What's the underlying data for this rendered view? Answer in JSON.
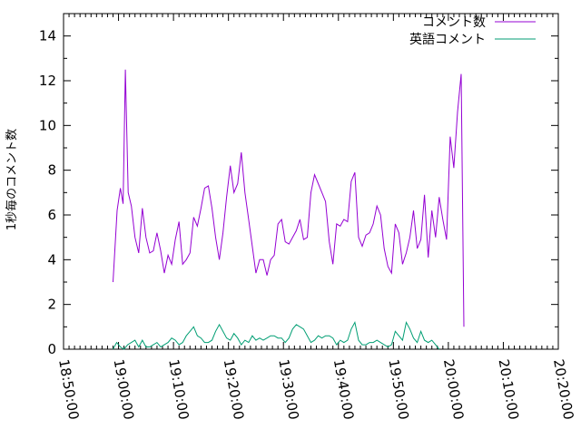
{
  "chart_data": {
    "type": "line",
    "title": "",
    "xlabel": "",
    "ylabel": "1秒毎のコメント数",
    "ylim": [
      0,
      15
    ],
    "yticks": [
      0,
      2,
      4,
      6,
      8,
      10,
      12,
      14
    ],
    "xlim": [
      "18:50:00",
      "20:20:00"
    ],
    "xticks": [
      "18:50:00",
      "19:00:00",
      "19:10:00",
      "19:20:00",
      "19:30:00",
      "19:40:00",
      "19:50:00",
      "20:00:00",
      "20:10:00",
      "20:20:00"
    ],
    "grid": false,
    "legend_position": "top-right",
    "series": [
      {
        "name": "コメント数",
        "color": "#9400d3",
        "points": [
          [
            "18:59:00",
            3.0
          ],
          [
            "18:59:45",
            6.2
          ],
          [
            "19:00:20",
            7.2
          ],
          [
            "19:00:50",
            6.5
          ],
          [
            "19:01:15",
            12.5
          ],
          [
            "19:01:45",
            7.0
          ],
          [
            "19:02:20",
            6.4
          ],
          [
            "19:03:00",
            5.0
          ],
          [
            "19:03:40",
            4.3
          ],
          [
            "19:04:20",
            6.3
          ],
          [
            "19:05:00",
            5.0
          ],
          [
            "19:05:40",
            4.3
          ],
          [
            "19:06:20",
            4.4
          ],
          [
            "19:07:00",
            5.2
          ],
          [
            "19:07:40",
            4.4
          ],
          [
            "19:08:20",
            3.4
          ],
          [
            "19:09:00",
            4.2
          ],
          [
            "19:09:40",
            3.8
          ],
          [
            "19:10:20",
            4.9
          ],
          [
            "19:11:00",
            5.7
          ],
          [
            "19:11:40",
            3.8
          ],
          [
            "19:12:20",
            4.0
          ],
          [
            "19:13:00",
            4.3
          ],
          [
            "19:13:40",
            5.9
          ],
          [
            "19:14:20",
            5.5
          ],
          [
            "19:15:00",
            6.3
          ],
          [
            "19:15:40",
            7.2
          ],
          [
            "19:16:20",
            7.3
          ],
          [
            "19:17:00",
            6.3
          ],
          [
            "19:17:40",
            5.0
          ],
          [
            "19:18:20",
            4.0
          ],
          [
            "19:19:00",
            5.2
          ],
          [
            "19:19:40",
            6.8
          ],
          [
            "19:20:20",
            8.2
          ],
          [
            "19:21:00",
            7.0
          ],
          [
            "19:21:40",
            7.4
          ],
          [
            "19:22:20",
            8.8
          ],
          [
            "19:23:00",
            7.0
          ],
          [
            "19:23:40",
            5.8
          ],
          [
            "19:24:20",
            4.6
          ],
          [
            "19:25:00",
            3.4
          ],
          [
            "19:25:40",
            4.0
          ],
          [
            "19:26:20",
            4.0
          ],
          [
            "19:27:00",
            3.3
          ],
          [
            "19:27:40",
            4.0
          ],
          [
            "19:28:20",
            4.2
          ],
          [
            "19:29:00",
            5.6
          ],
          [
            "19:29:40",
            5.8
          ],
          [
            "19:30:20",
            4.8
          ],
          [
            "19:31:00",
            4.7
          ],
          [
            "19:31:40",
            5.0
          ],
          [
            "19:32:20",
            5.3
          ],
          [
            "19:33:00",
            5.8
          ],
          [
            "19:33:40",
            4.9
          ],
          [
            "19:34:20",
            5.0
          ],
          [
            "19:35:00",
            7.0
          ],
          [
            "19:35:40",
            7.8
          ],
          [
            "19:36:20",
            7.4
          ],
          [
            "19:37:00",
            7.0
          ],
          [
            "19:37:40",
            6.6
          ],
          [
            "19:38:20",
            4.8
          ],
          [
            "19:39:00",
            3.8
          ],
          [
            "19:39:40",
            5.6
          ],
          [
            "19:40:20",
            5.5
          ],
          [
            "19:41:00",
            5.8
          ],
          [
            "19:41:40",
            5.7
          ],
          [
            "19:42:20",
            7.5
          ],
          [
            "19:43:00",
            7.9
          ],
          [
            "19:43:40",
            5.0
          ],
          [
            "19:44:20",
            4.6
          ],
          [
            "19:45:00",
            5.1
          ],
          [
            "19:45:40",
            5.2
          ],
          [
            "19:46:20",
            5.6
          ],
          [
            "19:47:00",
            6.4
          ],
          [
            "19:47:40",
            6.0
          ],
          [
            "19:48:20",
            4.5
          ],
          [
            "19:49:00",
            3.7
          ],
          [
            "19:49:40",
            3.4
          ],
          [
            "19:50:20",
            5.6
          ],
          [
            "19:51:00",
            5.2
          ],
          [
            "19:51:40",
            3.8
          ],
          [
            "19:52:20",
            4.3
          ],
          [
            "19:53:00",
            5.0
          ],
          [
            "19:53:40",
            6.2
          ],
          [
            "19:54:20",
            4.5
          ],
          [
            "19:55:00",
            4.9
          ],
          [
            "19:55:40",
            6.9
          ],
          [
            "19:56:20",
            4.1
          ],
          [
            "19:57:00",
            6.2
          ],
          [
            "19:57:40",
            5.0
          ],
          [
            "19:58:20",
            6.8
          ],
          [
            "19:59:00",
            5.8
          ],
          [
            "19:59:40",
            4.9
          ],
          [
            "20:00:20",
            9.5
          ],
          [
            "20:01:00",
            8.1
          ],
          [
            "20:01:40",
            10.6
          ],
          [
            "20:02:20",
            12.3
          ],
          [
            "20:02:50",
            1.0
          ]
        ]
      },
      {
        "name": "英語コメント",
        "color": "#009e73",
        "points": [
          [
            "18:59:00",
            0.0
          ],
          [
            "18:59:40",
            0.3
          ],
          [
            "19:00:20",
            0.1
          ],
          [
            "19:01:00",
            0.0
          ],
          [
            "19:01:40",
            0.2
          ],
          [
            "19:02:20",
            0.3
          ],
          [
            "19:03:00",
            0.4
          ],
          [
            "19:03:40",
            0.1
          ],
          [
            "19:04:20",
            0.4
          ],
          [
            "19:05:00",
            0.1
          ],
          [
            "19:05:40",
            0.1
          ],
          [
            "19:06:20",
            0.2
          ],
          [
            "19:07:00",
            0.3
          ],
          [
            "19:07:40",
            0.1
          ],
          [
            "19:08:20",
            0.2
          ],
          [
            "19:09:00",
            0.3
          ],
          [
            "19:09:40",
            0.5
          ],
          [
            "19:10:20",
            0.4
          ],
          [
            "19:11:00",
            0.2
          ],
          [
            "19:11:40",
            0.3
          ],
          [
            "19:12:20",
            0.6
          ],
          [
            "19:13:00",
            0.8
          ],
          [
            "19:13:40",
            1.0
          ],
          [
            "19:14:20",
            0.6
          ],
          [
            "19:15:00",
            0.5
          ],
          [
            "19:15:40",
            0.3
          ],
          [
            "19:16:20",
            0.3
          ],
          [
            "19:17:00",
            0.4
          ],
          [
            "19:17:40",
            0.8
          ],
          [
            "19:18:20",
            1.1
          ],
          [
            "19:19:00",
            0.8
          ],
          [
            "19:19:40",
            0.5
          ],
          [
            "19:20:20",
            0.4
          ],
          [
            "19:21:00",
            0.7
          ],
          [
            "19:21:40",
            0.5
          ],
          [
            "19:22:20",
            0.2
          ],
          [
            "19:23:00",
            0.4
          ],
          [
            "19:23:40",
            0.3
          ],
          [
            "19:24:20",
            0.6
          ],
          [
            "19:25:00",
            0.4
          ],
          [
            "19:25:40",
            0.5
          ],
          [
            "19:26:20",
            0.4
          ],
          [
            "19:27:00",
            0.5
          ],
          [
            "19:27:40",
            0.6
          ],
          [
            "19:28:20",
            0.6
          ],
          [
            "19:29:00",
            0.5
          ],
          [
            "19:29:40",
            0.5
          ],
          [
            "19:30:20",
            0.3
          ],
          [
            "19:31:00",
            0.5
          ],
          [
            "19:31:40",
            0.9
          ],
          [
            "19:32:20",
            1.1
          ],
          [
            "19:33:00",
            1.0
          ],
          [
            "19:33:40",
            0.9
          ],
          [
            "19:34:20",
            0.6
          ],
          [
            "19:35:00",
            0.3
          ],
          [
            "19:35:40",
            0.4
          ],
          [
            "19:36:20",
            0.6
          ],
          [
            "19:37:00",
            0.5
          ],
          [
            "19:37:40",
            0.6
          ],
          [
            "19:38:20",
            0.6
          ],
          [
            "19:39:00",
            0.5
          ],
          [
            "19:39:40",
            0.2
          ],
          [
            "19:40:20",
            0.4
          ],
          [
            "19:41:00",
            0.3
          ],
          [
            "19:41:40",
            0.4
          ],
          [
            "19:42:20",
            0.9
          ],
          [
            "19:43:00",
            1.2
          ],
          [
            "19:43:40",
            0.4
          ],
          [
            "19:44:20",
            0.2
          ],
          [
            "19:45:00",
            0.2
          ],
          [
            "19:45:40",
            0.3
          ],
          [
            "19:46:20",
            0.3
          ],
          [
            "19:47:00",
            0.4
          ],
          [
            "19:47:40",
            0.3
          ],
          [
            "19:48:20",
            0.2
          ],
          [
            "19:49:00",
            0.1
          ],
          [
            "19:49:40",
            0.2
          ],
          [
            "19:50:20",
            0.8
          ],
          [
            "19:51:00",
            0.6
          ],
          [
            "19:51:40",
            0.4
          ],
          [
            "19:52:20",
            1.2
          ],
          [
            "19:53:00",
            0.9
          ],
          [
            "19:53:40",
            0.5
          ],
          [
            "19:54:20",
            0.3
          ],
          [
            "19:55:00",
            0.8
          ],
          [
            "19:55:40",
            0.4
          ],
          [
            "19:56:20",
            0.3
          ],
          [
            "19:57:00",
            0.4
          ],
          [
            "19:57:40",
            0.2
          ],
          [
            "19:58:20",
            0.0
          ]
        ]
      }
    ]
  }
}
